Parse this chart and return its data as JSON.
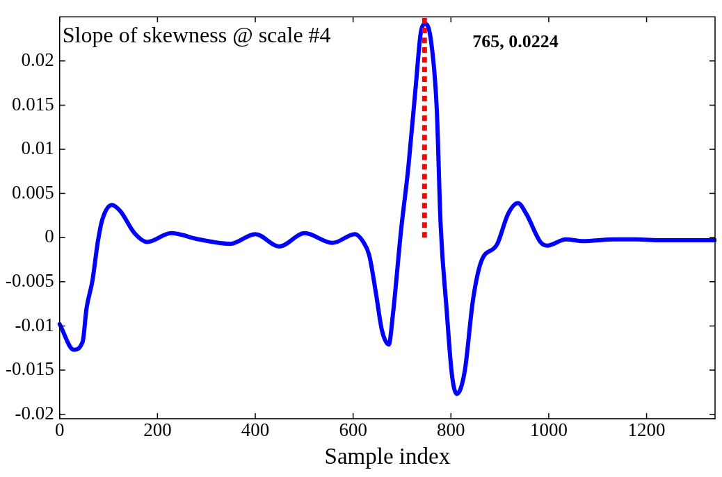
{
  "chart_data": {
    "type": "line",
    "title": "Slope of skewness @ scale #4",
    "xlabel": "Sample index",
    "xlim": [
      0,
      1340
    ],
    "xticks": [
      0,
      200,
      400,
      600,
      800,
      1000,
      1200
    ],
    "ylim": [
      -0.0205,
      0.025
    ],
    "yticks": [
      -0.02,
      -0.015,
      -0.01,
      -0.005,
      0,
      0.005,
      0.01,
      0.015,
      0.02
    ],
    "grid": false,
    "legend": false,
    "marker": "none",
    "line_style": "solid",
    "series": [
      {
        "color": "#0000ff",
        "x": [
          0,
          29,
          47,
          55,
          67,
          78,
          87,
          107,
          124,
          153,
          179,
          228,
          285,
          349,
          400,
          449,
          501,
          558,
          604,
          621,
          633,
          647,
          659,
          673,
          681,
          698,
          713,
          728,
          739,
          748,
          759,
          771,
          779,
          791,
          802,
          812,
          828,
          845,
          862,
          894,
          917,
          937,
          954,
          983,
          997,
          1035,
          1070,
          1133,
          1179,
          1231,
          1340
        ],
        "values": [
          -0.0098,
          -0.0127,
          -0.0118,
          -0.008,
          -0.0049,
          -0.0005,
          0.002,
          0.0037,
          0.003,
          0.0005,
          -0.0005,
          0.0005,
          -0.0002,
          -0.0007,
          0.0004,
          -0.001,
          0.0005,
          -0.0006,
          0.0004,
          -0.0005,
          -0.002,
          -0.0064,
          -0.0105,
          -0.0121,
          -0.0089,
          0.0008,
          0.008,
          0.0171,
          0.0234,
          0.0242,
          0.0224,
          0.0146,
          0.0014,
          -0.008,
          -0.0155,
          -0.0177,
          -0.0152,
          -0.0071,
          -0.0027,
          -0.0008,
          0.0027,
          0.0039,
          0.0027,
          -0.0005,
          -0.0009,
          -0.0002,
          -0.0004,
          -0.0002,
          -0.0002,
          -0.0003,
          -0.0003
        ]
      },
      {
        "type": "line",
        "color": "#ff0000",
        "line_style": "dotted",
        "x": [
          746,
          746
        ],
        "values": [
          0,
          0.025
        ]
      }
    ],
    "annotations": [
      "765, 0.0224"
    ]
  }
}
